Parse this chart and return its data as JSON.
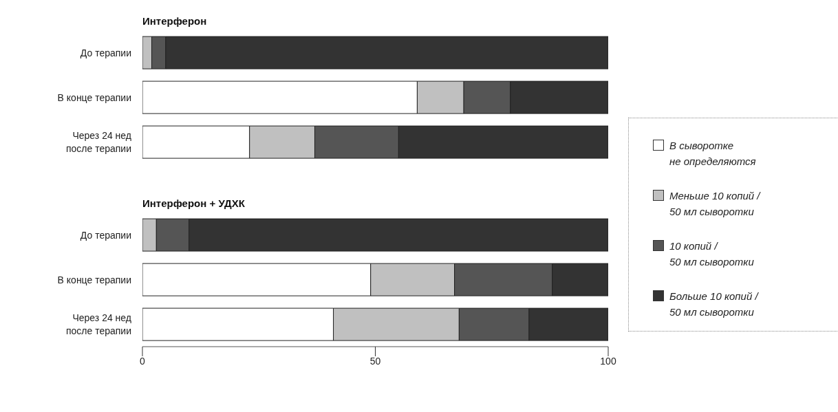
{
  "chart_data": [
    {
      "type": "bar",
      "orientation": "horizontal",
      "stacked": true,
      "title": "Интерферон",
      "categories": [
        "До терапии",
        "В конце терапии",
        "Через 24 нед после терапии"
      ],
      "xlim": [
        0,
        100
      ],
      "tick_labels": "y",
      "legend": false,
      "series": [
        {
          "color": "#ffffff",
          "values": [
            0,
            59,
            23
          ]
        },
        {
          "color": "#c0c0c0",
          "values": [
            2,
            10,
            14
          ]
        },
        {
          "color": "#555555",
          "values": [
            3,
            10,
            18
          ]
        },
        {
          "color": "#333333",
          "values": [
            95,
            21,
            45
          ]
        }
      ]
    },
    {
      "type": "bar",
      "orientation": "horizontal",
      "stacked": true,
      "title": "Интерферон + УДХК",
      "categories": [
        "До терапии",
        "В конце терапии",
        "Через 24 нед после терапии"
      ],
      "xlim": [
        0,
        100
      ],
      "xticks": [
        0,
        50,
        100
      ],
      "legend": "right",
      "series": [
        {
          "name": "В сыворотке не определяются",
          "color": "#ffffff",
          "values": [
            0,
            49,
            41
          ]
        },
        {
          "name": "Меньше 10 копий / 50 мл сыворотки",
          "color": "#c0c0c0",
          "values": [
            3,
            18,
            27
          ]
        },
        {
          "name": "10 копий / 50 мл сыворотки",
          "color": "#555555",
          "values": [
            7,
            21,
            15
          ]
        },
        {
          "name": "Больше 10 копий / 50 мл сыворотки",
          "color": "#333333",
          "values": [
            90,
            12,
            17
          ]
        }
      ]
    }
  ]
}
